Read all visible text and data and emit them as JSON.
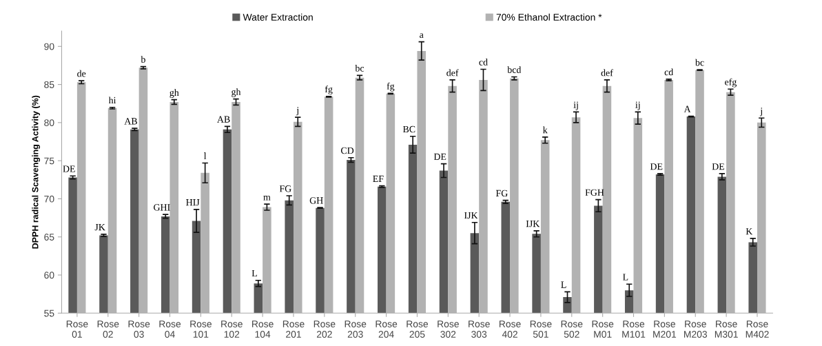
{
  "chart_data": {
    "type": "bar",
    "ylabel": "DPPH radical Scavenging Activity (%)",
    "categories": [
      "Rose\n01",
      "Rose\n02",
      "Rose\n03",
      "Rose\n04",
      "Rose\n101",
      "Rose\n102",
      "Rose\n104",
      "Rose\n201",
      "Rose\n202",
      "Rose\n203",
      "Rose\n204",
      "Rose\n205",
      "Rose\n302",
      "Rose\n303",
      "Rose\n402",
      "Rose\n501",
      "Rose\n502",
      "Rose\nM01",
      "Rose\nM101",
      "Rose\nM201",
      "Rose\nM203",
      "Rose\nM301",
      "Rose\nM402"
    ],
    "series": [
      {
        "name": "Water Extraction",
        "color": "#5a5a5a",
        "values": [
          72.8,
          65.2,
          79.1,
          67.7,
          67.1,
          79.1,
          58.9,
          69.8,
          68.8,
          75.1,
          71.6,
          77.1,
          73.7,
          65.5,
          69.6,
          65.4,
          57.1,
          69.1,
          58.0,
          73.2,
          80.8,
          72.9,
          64.3
        ],
        "errors": [
          0.2,
          0.15,
          0.15,
          0.25,
          1.5,
          0.4,
          0.4,
          0.6,
          0.05,
          0.3,
          0.1,
          1.1,
          0.9,
          1.4,
          0.2,
          0.4,
          0.7,
          0.8,
          0.8,
          0.1,
          0.05,
          0.4,
          0.5
        ],
        "value_labels": [
          "DE",
          "JK",
          "AB",
          "GHI",
          "HIJ",
          "AB",
          "L",
          "FG",
          "GH",
          "CD",
          "EF",
          "BC",
          "DE",
          "IJK",
          "FG",
          "IJK",
          "L",
          "FGH",
          "L",
          "DE",
          "A",
          "DE",
          "K"
        ]
      },
      {
        "name": "70% Ethanol Extraction *",
        "color": "#b2b2b2",
        "values": [
          85.3,
          81.9,
          87.2,
          82.7,
          73.4,
          82.7,
          68.9,
          80.1,
          83.4,
          85.9,
          83.8,
          89.4,
          84.8,
          85.6,
          85.8,
          77.7,
          80.7,
          84.8,
          80.6,
          85.6,
          86.9,
          84.0,
          80.0
        ],
        "errors": [
          0.2,
          0.1,
          0.15,
          0.3,
          1.3,
          0.4,
          0.4,
          0.6,
          0.05,
          0.3,
          0.05,
          1.2,
          0.8,
          1.4,
          0.2,
          0.4,
          0.7,
          0.8,
          0.8,
          0.1,
          0.05,
          0.4,
          0.6
        ],
        "value_labels": [
          "de",
          "hi",
          "b",
          "gh",
          "l",
          "gh",
          "m",
          "j",
          "fg",
          "bc",
          "fg",
          "a",
          "def",
          "cd",
          "bcd",
          "k",
          "ij",
          "def",
          "ij",
          "cd",
          "bc",
          "efg",
          "j"
        ]
      }
    ],
    "ylim": [
      55,
      92
    ],
    "yticks": [
      55,
      60,
      65,
      70,
      75,
      80,
      85,
      90
    ],
    "grid": false,
    "legend": "top"
  }
}
